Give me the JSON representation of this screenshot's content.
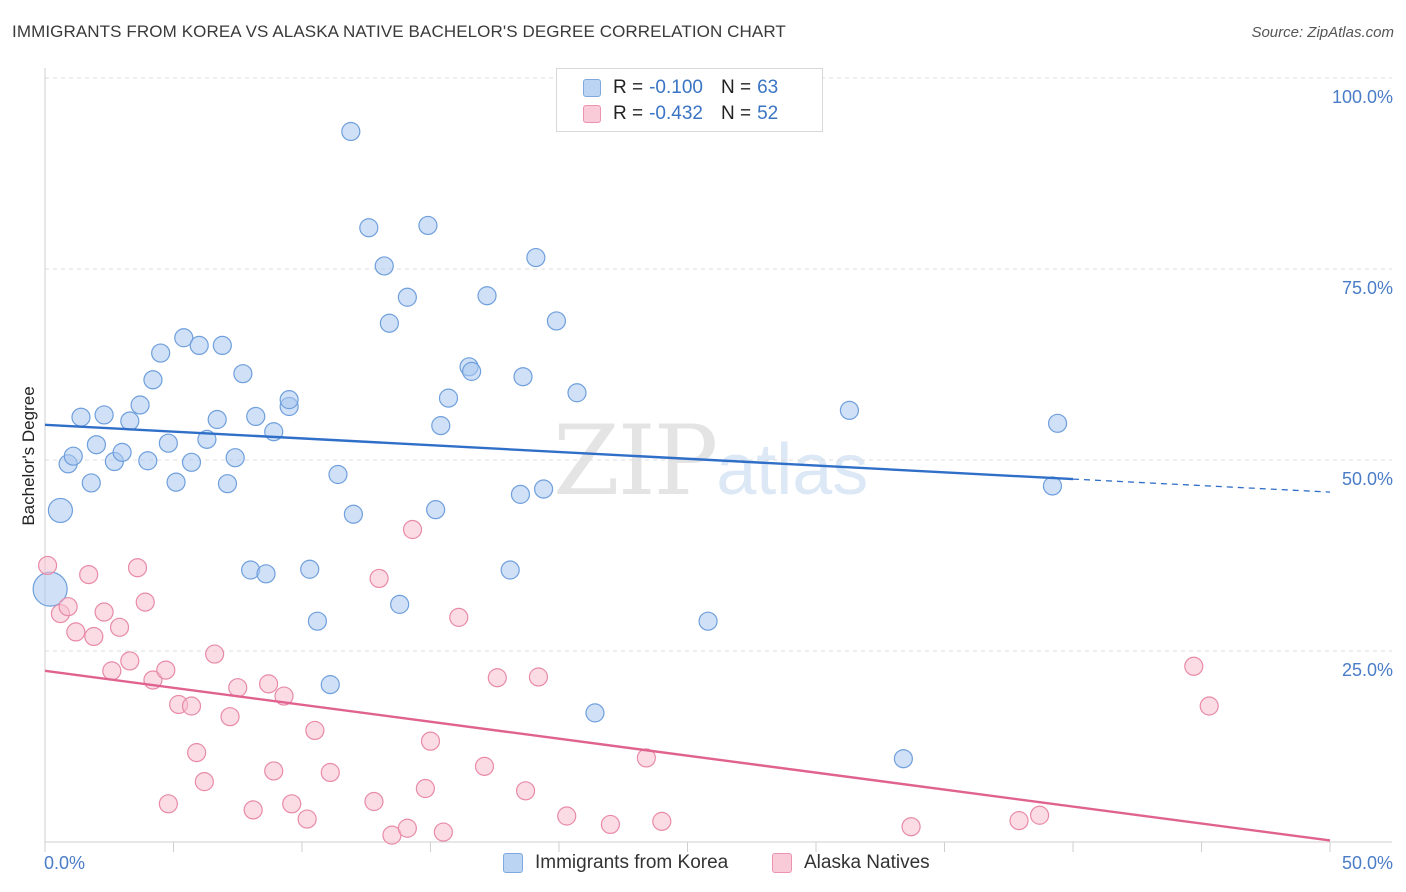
{
  "title": "IMMIGRANTS FROM KOREA VS ALASKA NATIVE BACHELOR'S DEGREE CORRELATION CHART",
  "source": "Source: ZipAtlas.com",
  "watermark": {
    "zip": "ZIP",
    "atlas": "atlas"
  },
  "legend": {
    "rows": [
      {
        "r_label": "R = ",
        "r_value": "-0.100",
        "n_label": "N = ",
        "n_value": "63"
      },
      {
        "r_label": "R = ",
        "r_value": "-0.432",
        "n_label": "N = ",
        "n_value": "52"
      }
    ]
  },
  "chart_data": {
    "type": "scatter",
    "title": "IMMIGRANTS FROM KOREA VS ALASKA NATIVE BACHELOR'S DEGREE CORRELATION CHART",
    "xlabel": "",
    "ylabel": "Bachelor's Degree",
    "xlim": [
      0,
      50
    ],
    "ylim": [
      0,
      100
    ],
    "x_tick_labels": [
      "0.0%",
      "50.0%"
    ],
    "y_tick_labels": [
      "100.0%",
      "75.0%",
      "50.0%",
      "25.0%"
    ],
    "y_ticks": [
      100,
      75,
      50,
      25
    ],
    "grid": "horizontal dashed",
    "legend_placement": "top-center and bottom",
    "series": [
      {
        "name": "Immigrants from Korea",
        "color": "#a9c8f0",
        "edge": "#6f9fdc",
        "line_color": "#2f6fc8",
        "r": -0.1,
        "n": 63,
        "trend": {
          "x": [
            0,
            40
          ],
          "y": [
            54.6,
            47.5
          ],
          "dashed_to": [
            50,
            45.8
          ]
        },
        "points": [
          [
            0.6,
            43.4
          ],
          [
            0.9,
            49.5
          ],
          [
            1.1,
            50.5
          ],
          [
            1.4,
            55.6
          ],
          [
            1.8,
            47.0
          ],
          [
            2.0,
            52.0
          ],
          [
            2.3,
            55.9
          ],
          [
            2.7,
            49.8
          ],
          [
            3.0,
            51.0
          ],
          [
            3.3,
            55.1
          ],
          [
            3.7,
            57.2
          ],
          [
            4.0,
            49.9
          ],
          [
            4.2,
            60.5
          ],
          [
            4.5,
            64.0
          ],
          [
            4.8,
            52.2
          ],
          [
            5.1,
            47.1
          ],
          [
            5.4,
            66.0
          ],
          [
            5.7,
            49.7
          ],
          [
            6.0,
            65.0
          ],
          [
            6.3,
            52.7
          ],
          [
            6.7,
            55.3
          ],
          [
            6.9,
            65.0
          ],
          [
            7.1,
            46.9
          ],
          [
            7.4,
            50.3
          ],
          [
            7.7,
            61.3
          ],
          [
            8.0,
            35.6
          ],
          [
            8.2,
            55.7
          ],
          [
            8.6,
            35.1
          ],
          [
            8.9,
            53.7
          ],
          [
            9.5,
            57.0
          ],
          [
            9.5,
            57.9
          ],
          [
            10.3,
            35.7
          ],
          [
            10.6,
            28.9
          ],
          [
            11.1,
            20.6
          ],
          [
            11.4,
            48.1
          ],
          [
            11.9,
            93.0
          ],
          [
            12.0,
            42.9
          ],
          [
            12.6,
            80.4
          ],
          [
            13.2,
            75.4
          ],
          [
            13.4,
            67.9
          ],
          [
            13.8,
            31.1
          ],
          [
            14.1,
            71.3
          ],
          [
            14.9,
            80.7
          ],
          [
            15.2,
            43.5
          ],
          [
            15.4,
            54.5
          ],
          [
            15.7,
            58.1
          ],
          [
            16.5,
            62.2
          ],
          [
            16.6,
            61.6
          ],
          [
            17.2,
            71.5
          ],
          [
            18.1,
            35.6
          ],
          [
            18.5,
            45.5
          ],
          [
            18.6,
            60.9
          ],
          [
            19.1,
            76.5
          ],
          [
            19.4,
            46.2
          ],
          [
            19.9,
            68.2
          ],
          [
            20.7,
            58.8
          ],
          [
            21.4,
            16.9
          ],
          [
            25.8,
            28.9
          ],
          [
            31.3,
            56.5
          ],
          [
            33.4,
            10.9
          ],
          [
            39.2,
            46.6
          ],
          [
            39.4,
            54.8
          ],
          [
            0.2,
            33.1
          ]
        ]
      },
      {
        "name": "Alaska Natives",
        "color": "#f7bfd0",
        "edge": "#e88aa8",
        "line_color": "#e0628f",
        "r": -0.432,
        "n": 52,
        "trend": {
          "x": [
            0,
            50
          ],
          "y": [
            22.4,
            0.2
          ]
        },
        "points": [
          [
            0.1,
            36.2
          ],
          [
            0.6,
            29.9
          ],
          [
            0.9,
            30.8
          ],
          [
            1.2,
            27.5
          ],
          [
            1.7,
            35.0
          ],
          [
            1.9,
            26.9
          ],
          [
            2.3,
            30.1
          ],
          [
            2.6,
            22.4
          ],
          [
            2.9,
            28.1
          ],
          [
            3.3,
            23.7
          ],
          [
            3.6,
            35.9
          ],
          [
            3.9,
            31.4
          ],
          [
            4.2,
            21.2
          ],
          [
            4.7,
            22.5
          ],
          [
            4.8,
            5.0
          ],
          [
            5.2,
            18.0
          ],
          [
            5.7,
            17.8
          ],
          [
            5.9,
            11.7
          ],
          [
            6.2,
            7.9
          ],
          [
            6.6,
            24.6
          ],
          [
            7.2,
            16.4
          ],
          [
            7.5,
            20.2
          ],
          [
            8.1,
            4.2
          ],
          [
            8.7,
            20.7
          ],
          [
            8.9,
            9.3
          ],
          [
            9.3,
            19.1
          ],
          [
            9.6,
            5.0
          ],
          [
            10.2,
            3.0
          ],
          [
            10.5,
            14.6
          ],
          [
            11.1,
            9.1
          ],
          [
            12.8,
            5.3
          ],
          [
            13.0,
            34.5
          ],
          [
            13.5,
            0.9
          ],
          [
            14.1,
            1.8
          ],
          [
            14.3,
            40.9
          ],
          [
            14.8,
            7.0
          ],
          [
            15.0,
            13.2
          ],
          [
            15.5,
            1.3
          ],
          [
            16.1,
            29.4
          ],
          [
            17.1,
            9.9
          ],
          [
            17.6,
            21.5
          ],
          [
            18.7,
            6.7
          ],
          [
            19.2,
            21.6
          ],
          [
            20.3,
            3.4
          ],
          [
            22.0,
            2.3
          ],
          [
            24.0,
            2.7
          ],
          [
            23.4,
            11.0
          ],
          [
            33.7,
            2.0
          ],
          [
            37.9,
            2.8
          ],
          [
            38.7,
            3.5
          ],
          [
            44.7,
            23.0
          ],
          [
            45.3,
            17.8
          ]
        ]
      }
    ]
  },
  "bottom_legend": [
    "Immigrants from Korea",
    "Alaska Natives"
  ]
}
